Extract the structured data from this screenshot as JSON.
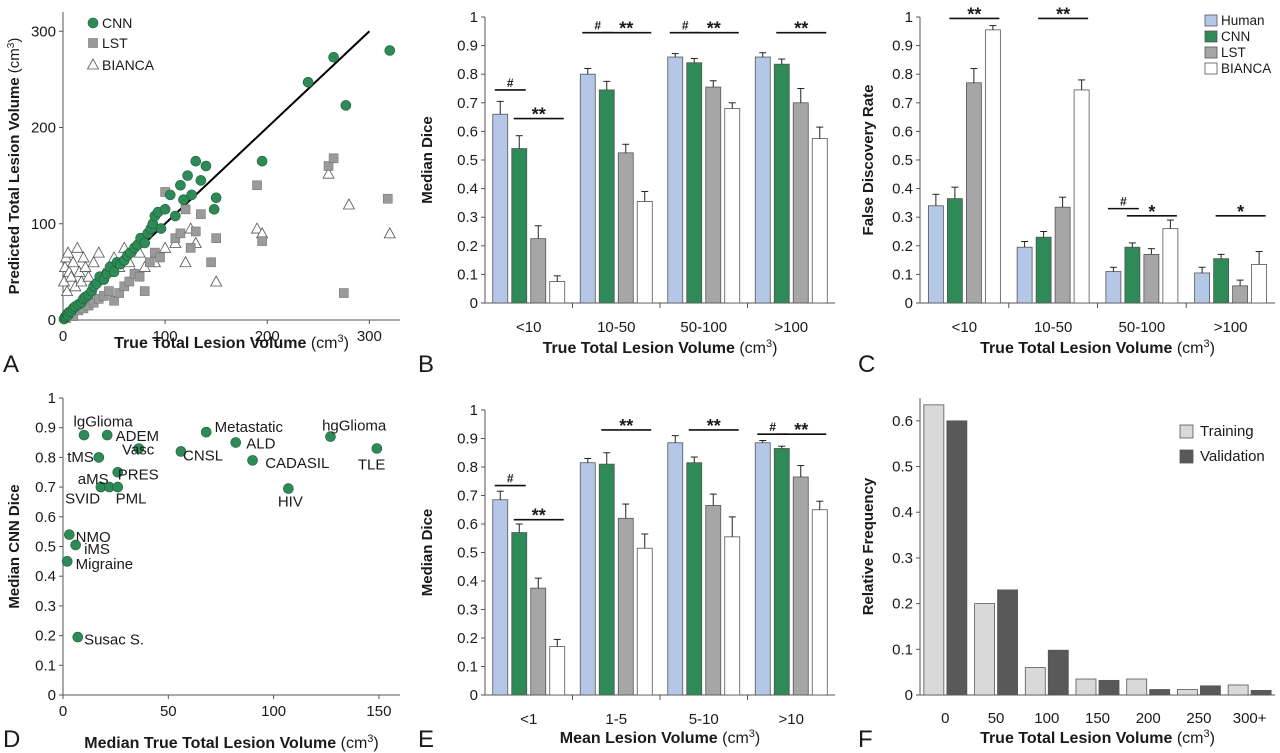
{
  "chart_data": [
    {
      "panel": "A",
      "type": "scatter",
      "xlabel": "True Total Lesion Volume",
      "ylabel": "Predicted Total Lesion Volume",
      "unit": "(cm",
      "unit_sup": "3",
      "unit_close": ")",
      "xlim": [
        0,
        330
      ],
      "ylim": [
        0,
        320
      ],
      "xticks": [
        "0",
        "100",
        "200",
        "300"
      ],
      "yticks": [
        "0",
        "100",
        "200",
        "300"
      ],
      "identity_line": [
        [
          0,
          0
        ],
        [
          300,
          300
        ]
      ],
      "legend": [
        "CNN",
        "LST",
        "BIANCA"
      ],
      "series": [
        {
          "name": "CNN",
          "marker": "circle",
          "color": "#2e8b57",
          "x": [
            1,
            2,
            3,
            4,
            5,
            6,
            8,
            10,
            12,
            15,
            18,
            20,
            22,
            25,
            28,
            30,
            33,
            36,
            40,
            43,
            46,
            50,
            53,
            56,
            60,
            63,
            66,
            70,
            73,
            76,
            80,
            83,
            86,
            88,
            90,
            93,
            96,
            100,
            105,
            110,
            115,
            118,
            122,
            126,
            130,
            135,
            140,
            148,
            150,
            195,
            240,
            265,
            277,
            320
          ],
          "y": [
            1,
            3,
            4,
            6,
            5,
            8,
            9,
            12,
            14,
            16,
            18,
            22,
            24,
            26,
            30,
            35,
            38,
            45,
            42,
            48,
            55,
            50,
            60,
            58,
            62,
            67,
            70,
            75,
            78,
            85,
            80,
            90,
            95,
            100,
            108,
            112,
            95,
            115,
            130,
            108,
            140,
            125,
            150,
            130,
            165,
            145,
            160,
            115,
            127,
            165,
            247,
            273,
            223,
            280
          ]
        },
        {
          "name": "LST",
          "marker": "square",
          "color": "#9a9a9a",
          "x": [
            3,
            6,
            10,
            15,
            20,
            25,
            30,
            35,
            40,
            45,
            50,
            55,
            60,
            65,
            70,
            75,
            80,
            85,
            90,
            95,
            100,
            110,
            115,
            120,
            125,
            130,
            135,
            145,
            150,
            190,
            195,
            260,
            265,
            275,
            318
          ],
          "y": [
            2,
            5,
            4,
            10,
            12,
            15,
            18,
            22,
            25,
            30,
            20,
            28,
            35,
            40,
            48,
            45,
            30,
            60,
            70,
            65,
            133,
            85,
            90,
            115,
            75,
            92,
            110,
            60,
            85,
            140,
            82,
            160,
            168,
            28,
            126
          ]
        },
        {
          "name": "BIANCA",
          "marker": "triangle",
          "color": "#ffffff",
          "x": [
            1,
            2,
            3,
            4,
            5,
            6,
            8,
            10,
            12,
            14,
            16,
            18,
            20,
            22,
            25,
            28,
            30,
            35,
            40,
            45,
            50,
            55,
            60,
            65,
            70,
            75,
            80,
            90,
            100,
            110,
            120,
            125,
            130,
            150,
            190,
            195,
            260,
            280,
            320
          ],
          "y": [
            40,
            55,
            65,
            30,
            70,
            50,
            45,
            60,
            35,
            75,
            50,
            40,
            65,
            55,
            45,
            30,
            60,
            70,
            48,
            50,
            65,
            55,
            75,
            60,
            48,
            70,
            55,
            60,
            75,
            80,
            60,
            95,
            80,
            40,
            95,
            90,
            152,
            120,
            90
          ]
        }
      ]
    },
    {
      "panel": "B",
      "type": "bar",
      "xlabel": "True Total Lesion Volume",
      "ylabel": "Median Dice",
      "unit": "(cm",
      "unit_sup": "3",
      "unit_close": ")",
      "ylim": [
        0,
        1
      ],
      "yticks": [
        "0",
        "0.1",
        "0.2",
        "0.3",
        "0.4",
        "0.5",
        "0.6",
        "0.7",
        "0.8",
        "0.9",
        "1"
      ],
      "categories": [
        "<10",
        "10-50",
        "50-100",
        ">100"
      ],
      "series": [
        {
          "name": "Human",
          "color": "#b4c7e7",
          "values": [
            0.66,
            0.8,
            0.86,
            0.86
          ],
          "err": [
            0.045,
            0.02,
            0.012,
            0.015
          ]
        },
        {
          "name": "CNN",
          "color": "#2e8b57",
          "values": [
            0.54,
            0.745,
            0.84,
            0.835
          ],
          "err": [
            0.045,
            0.03,
            0.015,
            0.018
          ]
        },
        {
          "name": "LST",
          "color": "#a6a6a6",
          "values": [
            0.225,
            0.525,
            0.755,
            0.7
          ],
          "err": [
            0.045,
            0.03,
            0.022,
            0.05
          ]
        },
        {
          "name": "BIANCA",
          "color": "#ffffff",
          "values": [
            0.075,
            0.355,
            0.68,
            0.575
          ],
          "err": [
            0.02,
            0.035,
            0.02,
            0.04
          ]
        }
      ],
      "annotations": [
        {
          "text": "#",
          "group": 0,
          "from": 0,
          "to": 1,
          "y": 0.745
        },
        {
          "text": "**",
          "group": 0,
          "from": 1,
          "to": 3,
          "y": 0.645
        },
        {
          "text": "#",
          "group": 1,
          "from": 0,
          "to": 1,
          "y": 0.945
        },
        {
          "text": "**",
          "group": 1,
          "from": 1,
          "to": 3,
          "y": 0.945
        },
        {
          "text": "#",
          "group": 2,
          "from": 0,
          "to": 1,
          "y": 0.945
        },
        {
          "text": "**",
          "group": 2,
          "from": 1,
          "to": 3,
          "y": 0.945
        },
        {
          "text": "**",
          "group": 3,
          "from": 1,
          "to": 3,
          "y": 0.945
        }
      ]
    },
    {
      "panel": "C",
      "type": "bar",
      "xlabel": "True Total Lesion Volume",
      "ylabel": "False Discovery Rate",
      "unit": "(cm",
      "unit_sup": "3",
      "unit_close": ")",
      "ylim": [
        0,
        1
      ],
      "yticks": [
        "0",
        "0.1",
        "0.2",
        "0.3",
        "0.4",
        "0.5",
        "0.6",
        "0.7",
        "0.8",
        "0.9",
        "1"
      ],
      "categories": [
        "<10",
        "10-50",
        "50-100",
        ">100"
      ],
      "legend": [
        "Human",
        "CNN",
        "LST",
        "BIANCA"
      ],
      "series": [
        {
          "name": "Human",
          "color": "#b4c7e7",
          "values": [
            0.34,
            0.195,
            0.11,
            0.105
          ],
          "err": [
            0.04,
            0.02,
            0.015,
            0.02
          ]
        },
        {
          "name": "CNN",
          "color": "#2e8b57",
          "values": [
            0.365,
            0.23,
            0.195,
            0.155
          ],
          "err": [
            0.04,
            0.02,
            0.015,
            0.015
          ]
        },
        {
          "name": "LST",
          "color": "#a6a6a6",
          "values": [
            0.77,
            0.335,
            0.17,
            0.06
          ],
          "err": [
            0.05,
            0.035,
            0.02,
            0.02
          ]
        },
        {
          "name": "BIANCA",
          "color": "#ffffff",
          "values": [
            0.955,
            0.745,
            0.26,
            0.135
          ],
          "err": [
            0.015,
            0.035,
            0.03,
            0.045
          ]
        }
      ],
      "annotations": [
        {
          "text": "**",
          "group": 0,
          "from": 1,
          "to": 3,
          "y": 0.995
        },
        {
          "text": "**",
          "group": 1,
          "from": 1,
          "to": 3,
          "y": 0.995
        },
        {
          "text": "#",
          "group": 2,
          "from": 0,
          "to": 1,
          "y": 0.33
        },
        {
          "text": "*",
          "group": 2,
          "from": 1,
          "to": 3,
          "y": 0.305
        },
        {
          "text": "*",
          "group": 3,
          "from": 1,
          "to": 3,
          "y": 0.305
        }
      ]
    },
    {
      "panel": "D",
      "type": "scatter",
      "xlabel": "Median True Total Lesion Volume",
      "ylabel": "Median CNN Dice",
      "unit": "(cm",
      "unit_sup": "3",
      "unit_close": ")",
      "xlim": [
        0,
        160
      ],
      "ylim": [
        0,
        1
      ],
      "xticks": [
        "0",
        "50",
        "100",
        "150"
      ],
      "yticks": [
        "0",
        "0.1",
        "0.2",
        "0.3",
        "0.4",
        "0.5",
        "0.6",
        "0.7",
        "0.8",
        "0.9",
        "1"
      ],
      "points": [
        {
          "label": "lgGlioma",
          "x": 10,
          "y": 0.875,
          "lx": 5,
          "ly": 0.925
        },
        {
          "label": "ADEM",
          "x": 21,
          "y": 0.875,
          "lx": 25,
          "ly": 0.875
        },
        {
          "label": "tMS",
          "x": 17,
          "y": 0.8,
          "lx": 2,
          "ly": 0.805
        },
        {
          "label": "Vasc",
          "x": 36,
          "y": 0.83,
          "lx": 28,
          "ly": 0.83
        },
        {
          "label": "Metastatic",
          "x": 68,
          "y": 0.885,
          "lx": 72,
          "ly": 0.905
        },
        {
          "label": "ALD",
          "x": 82,
          "y": 0.85,
          "lx": 87,
          "ly": 0.85
        },
        {
          "label": "CNSL",
          "x": 56,
          "y": 0.82,
          "lx": 57,
          "ly": 0.81
        },
        {
          "label": "CADASIL",
          "x": 90,
          "y": 0.79,
          "lx": 96,
          "ly": 0.785
        },
        {
          "label": "hgGlioma",
          "x": 127,
          "y": 0.87,
          "lx": 123,
          "ly": 0.91
        },
        {
          "label": "TLE",
          "x": 149,
          "y": 0.83,
          "lx": 140,
          "ly": 0.78
        },
        {
          "label": "PRES",
          "x": 26,
          "y": 0.75,
          "lx": 26,
          "ly": 0.745
        },
        {
          "label": "aMS",
          "x": 18,
          "y": 0.7,
          "lx": 7,
          "ly": 0.73
        },
        {
          "label": "SVID",
          "x": 22,
          "y": 0.7,
          "lx": 1,
          "ly": 0.665
        },
        {
          "label": "PML",
          "x": 26,
          "y": 0.7,
          "lx": 25,
          "ly": 0.665
        },
        {
          "label": "HIV",
          "x": 107,
          "y": 0.695,
          "lx": 102,
          "ly": 0.655
        },
        {
          "label": "NMO",
          "x": 3,
          "y": 0.54,
          "lx": 6,
          "ly": 0.535
        },
        {
          "label": "iMS",
          "x": 6,
          "y": 0.505,
          "lx": 10,
          "ly": 0.495
        },
        {
          "label": "Migraine",
          "x": 2,
          "y": 0.45,
          "lx": 6,
          "ly": 0.445
        },
        {
          "label": "Susac S.",
          "x": 7,
          "y": 0.195,
          "lx": 10,
          "ly": 0.19
        }
      ]
    },
    {
      "panel": "E",
      "type": "bar",
      "xlabel": "Mean Lesion Volume",
      "ylabel": "Median Dice",
      "unit": "(cm",
      "unit_sup": "3",
      "unit_close": ")",
      "ylim": [
        0,
        1
      ],
      "yticks": [
        "0",
        "0.1",
        "0.2",
        "0.3",
        "0.4",
        "0.5",
        "0.6",
        "0.7",
        "0.8",
        "0.9",
        "1"
      ],
      "categories": [
        "<1",
        "1-5",
        "5-10",
        ">10"
      ],
      "series": [
        {
          "name": "Human",
          "color": "#b4c7e7",
          "values": [
            0.685,
            0.815,
            0.885,
            0.885
          ],
          "err": [
            0.03,
            0.015,
            0.025,
            0.008
          ]
        },
        {
          "name": "CNN",
          "color": "#2e8b57",
          "values": [
            0.57,
            0.81,
            0.815,
            0.865
          ],
          "err": [
            0.03,
            0.04,
            0.02,
            0.008
          ]
        },
        {
          "name": "LST",
          "color": "#a6a6a6",
          "values": [
            0.375,
            0.62,
            0.665,
            0.765
          ],
          "err": [
            0.035,
            0.05,
            0.04,
            0.04
          ]
        },
        {
          "name": "BIANCA",
          "color": "#ffffff",
          "values": [
            0.17,
            0.515,
            0.555,
            0.65
          ],
          "err": [
            0.025,
            0.05,
            0.07,
            0.03
          ]
        }
      ],
      "annotations": [
        {
          "text": "#",
          "group": 0,
          "from": 0,
          "to": 1,
          "y": 0.735
        },
        {
          "text": "**",
          "group": 0,
          "from": 1,
          "to": 3,
          "y": 0.615
        },
        {
          "text": "**",
          "group": 1,
          "from": 1,
          "to": 3,
          "y": 0.93
        },
        {
          "text": "**",
          "group": 2,
          "from": 1,
          "to": 3,
          "y": 0.93
        },
        {
          "text": "#",
          "group": 3,
          "from": 0,
          "to": 1,
          "y": 0.915
        },
        {
          "text": "**",
          "group": 3,
          "from": 1,
          "to": 3,
          "y": 0.915
        }
      ]
    },
    {
      "panel": "F",
      "type": "bar",
      "xlabel": "True Total Lesion Volume",
      "ylabel": "Relative Frequency",
      "unit": "(cm",
      "unit_sup": "3",
      "unit_close": ")",
      "ylim": [
        0,
        0.65
      ],
      "yticks": [
        "0",
        "0.1",
        "0.2",
        "0.3",
        "0.4",
        "0.5",
        "0.6"
      ],
      "categories": [
        "0",
        "50",
        "100",
        "150",
        "200",
        "250",
        "300+"
      ],
      "legend": [
        "Training",
        "Validation"
      ],
      "series": [
        {
          "name": "Training",
          "color": "#d9d9d9",
          "values": [
            0.635,
            0.2,
            0.06,
            0.035,
            0.035,
            0.012,
            0.022
          ]
        },
        {
          "name": "Validation",
          "color": "#595959",
          "values": [
            0.6,
            0.23,
            0.098,
            0.032,
            0.012,
            0.02,
            0.01
          ]
        }
      ]
    }
  ]
}
